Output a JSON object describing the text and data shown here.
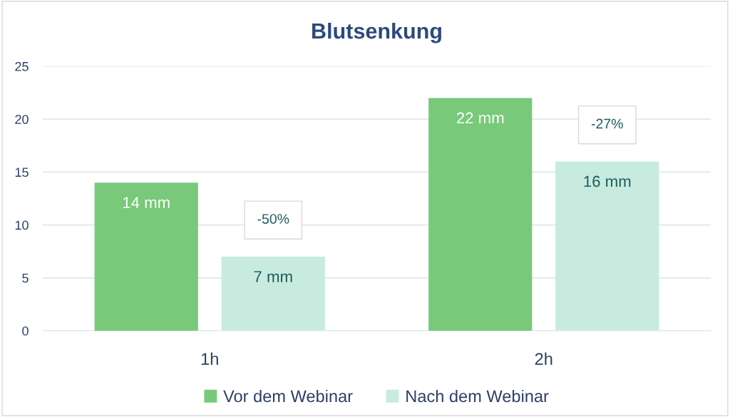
{
  "chart_data": {
    "type": "bar",
    "title": "Blutsenkung",
    "categories": [
      "1h",
      "2h"
    ],
    "series": [
      {
        "name": "Vor dem Webinar",
        "color": "#78c97a",
        "values": [
          14,
          22
        ],
        "value_labels": [
          "14 mm",
          "22 mm"
        ]
      },
      {
        "name": "Nach dem Webinar",
        "color": "#c8ebe0",
        "values": [
          7,
          16
        ],
        "value_labels": [
          "7 mm",
          "16 mm"
        ]
      }
    ],
    "ylim": [
      0,
      25
    ],
    "yticks": [
      0,
      5,
      10,
      15,
      20,
      25
    ],
    "grid": "y",
    "legend": "bottom",
    "annotations": [
      "-50%",
      "-27%"
    ]
  }
}
